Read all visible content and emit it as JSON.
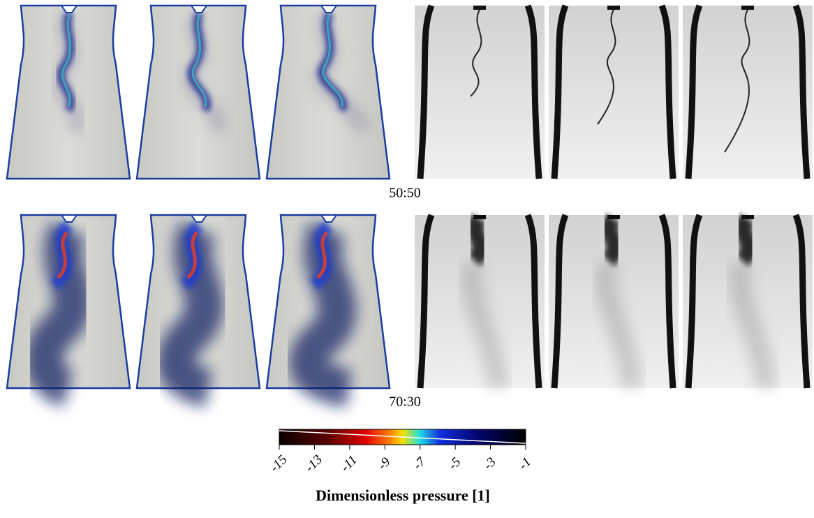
{
  "rows": [
    {
      "label": "50:50"
    },
    {
      "label": "70:30"
    }
  ],
  "colorbar": {
    "title": "Dimensionless pressure [1]",
    "lim": [
      -15,
      -1
    ],
    "ticks": [
      -15,
      -13,
      -11,
      -9,
      -7,
      -5,
      -3,
      -1
    ]
  }
}
